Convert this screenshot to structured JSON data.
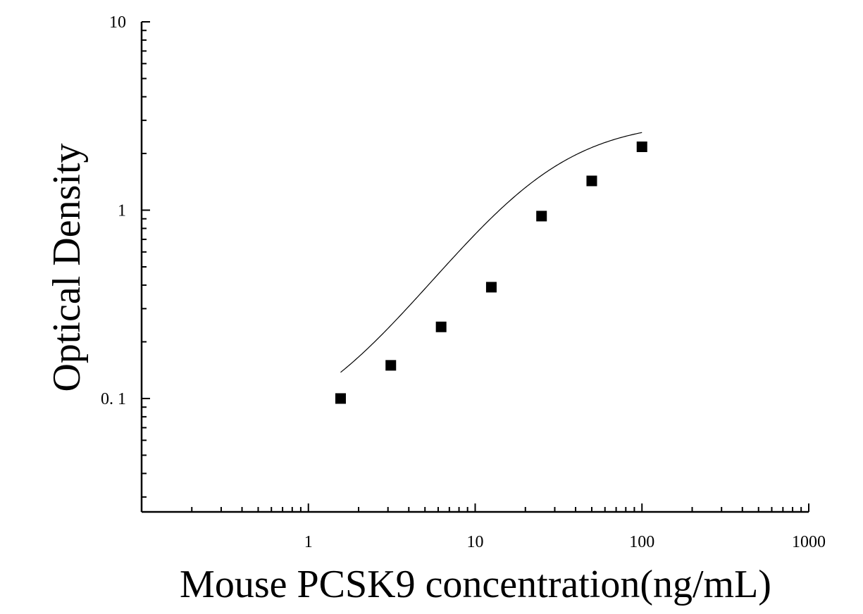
{
  "chart_data": {
    "type": "scatter",
    "xlabel": "Mouse PCSK9 concentration(ng/mL)",
    "ylabel": "Optical Density",
    "xscale": "log",
    "yscale": "log",
    "xlim": [
      0.1,
      1000
    ],
    "ylim": [
      0.025,
      10
    ],
    "x_ticks": [
      {
        "value": 1,
        "label": "1"
      },
      {
        "value": 10,
        "label": "10"
      },
      {
        "value": 100,
        "label": "100"
      },
      {
        "value": 1000,
        "label": "1000"
      }
    ],
    "y_ticks": [
      {
        "value": 0.1,
        "label": "0. 1"
      },
      {
        "value": 1,
        "label": "1"
      },
      {
        "value": 10,
        "label": "10"
      }
    ],
    "grid": false,
    "marker": "square",
    "marker_color": "#000000",
    "line_color": "#000000",
    "series": [
      {
        "x": [
          1.56,
          3.12,
          6.25,
          12.5,
          25,
          50,
          100
        ],
        "y": [
          0.1,
          0.15,
          0.24,
          0.39,
          0.93,
          1.43,
          2.17
        ]
      }
    ],
    "fit_curve": {
      "type": "4-parameter logistic",
      "a": 0.06,
      "d": 3.0,
      "c": 25,
      "b": 1.3
    }
  }
}
